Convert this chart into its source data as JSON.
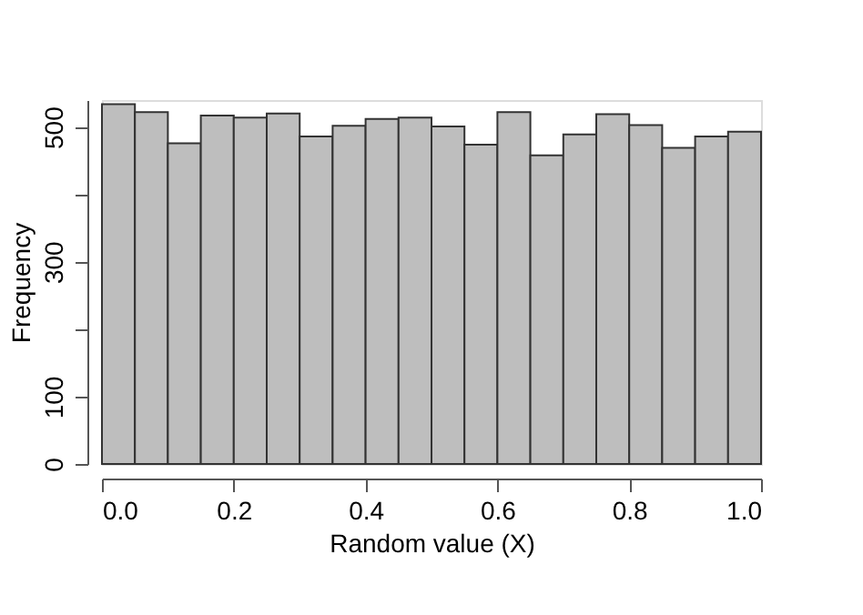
{
  "chart_data": {
    "type": "histogram",
    "xlabel": "Random value (X)",
    "ylabel": "Frequency",
    "color": "#bebebe",
    "bins": [
      0,
      0.05,
      0.1,
      0.15,
      0.2,
      0.25,
      0.3,
      0.35,
      0.4,
      0.45,
      0.5,
      0.55,
      0.6,
      0.65,
      0.7,
      0.75,
      0.8,
      0.85,
      0.9,
      0.95,
      1.0
    ],
    "values": [
      534,
      522,
      476,
      517,
      514,
      520,
      486,
      502,
      512,
      514,
      501,
      474,
      522,
      458,
      489,
      519,
      503,
      469,
      486,
      493
    ],
    "xlim": [
      0,
      1
    ],
    "xticks": [
      {
        "value": 0,
        "label": "0.0"
      },
      0.2,
      0.4,
      0.6,
      0.8,
      {
        "value": 1,
        "label": "1.0"
      }
    ],
    "ylim": [
      0,
      540
    ],
    "yticks": [
      0,
      100,
      {
        "value": 200,
        "label": null
      },
      300,
      {
        "value": 400,
        "label": null
      },
      500
    ],
    "grid": false
  }
}
